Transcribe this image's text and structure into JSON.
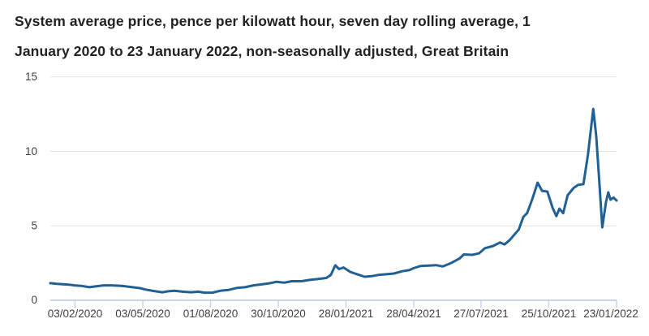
{
  "header": {
    "title_lines": [
      "System average price, pence per kilowatt hour, seven day rolling average, 1",
      "January 2020 to 23 January 2022, non-seasonally adjusted, Great Britain"
    ]
  },
  "colors": {
    "title": "#222222",
    "tick_label": "#414042",
    "gridline": "#e2e2e2",
    "axis": "#c8d4e8",
    "line": "#206095",
    "background": "#ffffff"
  },
  "chart_data": {
    "type": "line",
    "title": "System average price, pence per kilowatt hour, seven day rolling average, 1 January 2020 to 23 January 2022, non-seasonally adjusted, Great Britain",
    "xlabel": "",
    "ylabel": "",
    "ylim": [
      0,
      15
    ],
    "x_domain": [
      "2020-01-01",
      "2022-01-23"
    ],
    "grid": "horizontal",
    "legend": "none",
    "y_tick_labels": [
      "0",
      "5",
      "10",
      "15"
    ],
    "x_tick_labels": [
      "03/02/2020",
      "03/05/2020",
      "01/08/2020",
      "30/10/2020",
      "28/01/2021",
      "28/04/2021",
      "27/07/2021",
      "25/10/2021",
      "23/01/2022"
    ],
    "line_color": "#206095",
    "series": [
      {
        "name": "System average price, seven day rolling average",
        "dates": [
          "2020-01-01",
          "2020-01-10",
          "2020-01-26",
          "2020-02-02",
          "2020-02-11",
          "2020-02-22",
          "2020-03-01",
          "2020-03-12",
          "2020-03-23",
          "2020-04-05",
          "2020-04-16",
          "2020-04-29",
          "2020-05-07",
          "2020-05-18",
          "2020-05-29",
          "2020-06-05",
          "2020-06-14",
          "2020-06-25",
          "2020-07-06",
          "2020-07-16",
          "2020-07-24",
          "2020-08-04",
          "2020-08-15",
          "2020-08-25",
          "2020-09-05",
          "2020-09-16",
          "2020-09-27",
          "2020-10-07",
          "2020-10-18",
          "2020-10-28",
          "2020-11-07",
          "2020-11-17",
          "2020-11-30",
          "2020-12-11",
          "2020-12-22",
          "2021-01-02",
          "2021-01-08",
          "2021-01-14",
          "2021-01-19",
          "2021-01-25",
          "2021-02-03",
          "2021-02-12",
          "2021-02-22",
          "2021-03-03",
          "2021-03-12",
          "2021-03-23",
          "2021-04-02",
          "2021-04-13",
          "2021-04-22",
          "2021-04-28",
          "2021-05-07",
          "2021-05-18",
          "2021-05-28",
          "2021-06-06",
          "2021-06-17",
          "2021-06-28",
          "2021-07-04",
          "2021-07-15",
          "2021-07-24",
          "2021-08-01",
          "2021-08-12",
          "2021-08-21",
          "2021-08-27",
          "2021-09-03",
          "2021-09-09",
          "2021-09-15",
          "2021-09-21",
          "2021-09-26",
          "2021-10-03",
          "2021-10-10",
          "2021-10-16",
          "2021-10-23",
          "2021-10-30",
          "2021-11-04",
          "2021-11-08",
          "2021-11-13",
          "2021-11-19",
          "2021-11-27",
          "2021-12-03",
          "2021-12-10",
          "2021-12-16",
          "2021-12-23",
          "2021-12-27",
          "2021-12-31",
          "2022-01-04",
          "2022-01-09",
          "2022-01-12",
          "2022-01-15",
          "2022-01-19",
          "2022-01-23"
        ],
        "values": [
          1.15,
          1.1,
          1.05,
          1.0,
          0.97,
          0.88,
          0.93,
          1.0,
          1.0,
          0.97,
          0.9,
          0.82,
          0.72,
          0.62,
          0.54,
          0.6,
          0.64,
          0.58,
          0.54,
          0.58,
          0.51,
          0.52,
          0.65,
          0.7,
          0.83,
          0.88,
          1.0,
          1.06,
          1.14,
          1.24,
          1.18,
          1.28,
          1.28,
          1.37,
          1.43,
          1.5,
          1.7,
          2.35,
          2.1,
          2.2,
          1.9,
          1.75,
          1.58,
          1.62,
          1.7,
          1.75,
          1.8,
          1.95,
          2.02,
          2.15,
          2.3,
          2.33,
          2.36,
          2.27,
          2.5,
          2.8,
          3.08,
          3.05,
          3.15,
          3.5,
          3.65,
          3.88,
          3.75,
          4.05,
          4.4,
          4.75,
          5.6,
          5.85,
          6.8,
          7.9,
          7.35,
          7.3,
          6.2,
          5.65,
          6.15,
          5.85,
          7.05,
          7.55,
          7.75,
          7.8,
          9.8,
          12.85,
          11.0,
          8.0,
          4.9,
          6.6,
          7.25,
          6.75,
          6.9,
          6.7
        ]
      }
    ]
  }
}
